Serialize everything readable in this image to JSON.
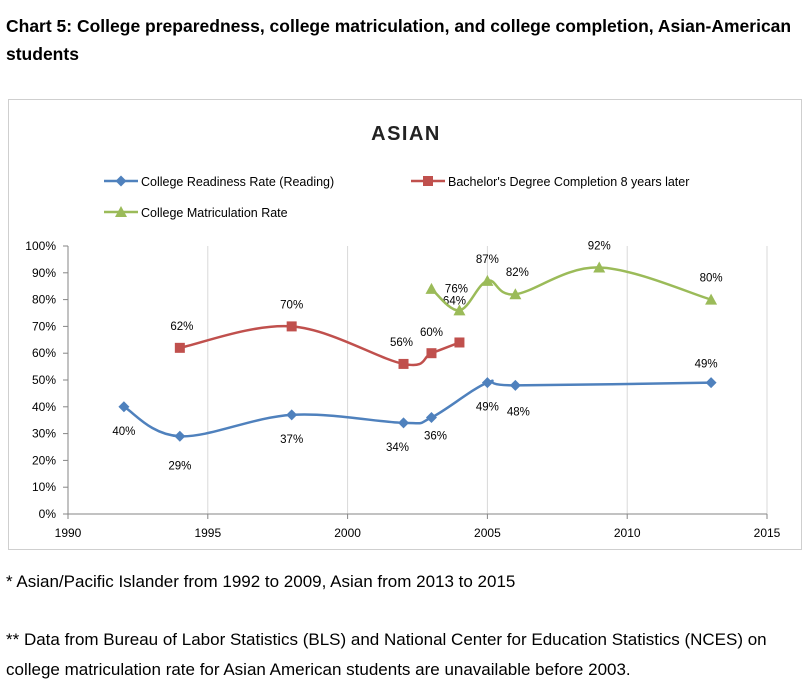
{
  "page": {
    "title": "Chart 5: College preparedness, college matriculation, and college completion, Asian-American students"
  },
  "footnotes": {
    "note1": "* Asian/Pacific Islander from 1992 to 2009, Asian from 2013 to 2015",
    "note2": "** Data from Bureau of Labor Statistics (BLS) and National Center for Education Statistics (NCES) on college matriculation rate for Asian American students are unavailable before 2003."
  },
  "chart_data": {
    "type": "line",
    "title": "ASIAN",
    "xlabel": "",
    "ylabel": "",
    "xlim": [
      1990,
      2015
    ],
    "ylim": [
      0,
      100
    ],
    "x_ticks": [
      "1990",
      "1995",
      "2000",
      "2005",
      "2010",
      "2015"
    ],
    "y_ticks": [
      "0%",
      "10%",
      "20%",
      "30%",
      "40%",
      "50%",
      "60%",
      "70%",
      "80%",
      "90%",
      "100%"
    ],
    "grid": "vertical",
    "legend": "top",
    "series": [
      {
        "name": "College Readiness Rate (Reading)",
        "color": "#4f81bd",
        "marker": "diamond",
        "points": [
          {
            "x": 1992,
            "y": 40,
            "label": "40%"
          },
          {
            "x": 1994,
            "y": 29,
            "label": "29%"
          },
          {
            "x": 1998,
            "y": 37,
            "label": "37%"
          },
          {
            "x": 2002,
            "y": 34,
            "label": "34%"
          },
          {
            "x": 2003,
            "y": 36,
            "label": "36%"
          },
          {
            "x": 2005,
            "y": 49,
            "label": "49%"
          },
          {
            "x": 2006,
            "y": 48,
            "label": "48%"
          },
          {
            "x": 2013,
            "y": 49,
            "label": "49%"
          }
        ]
      },
      {
        "name": "Bachelor's Degree Completion 8 years later",
        "color": "#c0504d",
        "marker": "square",
        "points": [
          {
            "x": 1994,
            "y": 62,
            "label": "62%"
          },
          {
            "x": 1998,
            "y": 70,
            "label": "70%"
          },
          {
            "x": 2002,
            "y": 56,
            "label": "56%"
          },
          {
            "x": 2003,
            "y": 60,
            "label": "60%"
          },
          {
            "x": 2004,
            "y": 64,
            "label": "64%"
          }
        ]
      },
      {
        "name": "College Matriculation Rate",
        "color": "#9bbb59",
        "marker": "triangle",
        "points": [
          {
            "x": 2003,
            "y": 84,
            "label": ""
          },
          {
            "x": 2004,
            "y": 76,
            "label": "76%"
          },
          {
            "x": 2005,
            "y": 87,
            "label": "87%"
          },
          {
            "x": 2006,
            "y": 82,
            "label": "82%"
          },
          {
            "x": 2009,
            "y": 92,
            "label": "92%"
          },
          {
            "x": 2013,
            "y": 80,
            "label": "80%"
          }
        ]
      }
    ]
  }
}
